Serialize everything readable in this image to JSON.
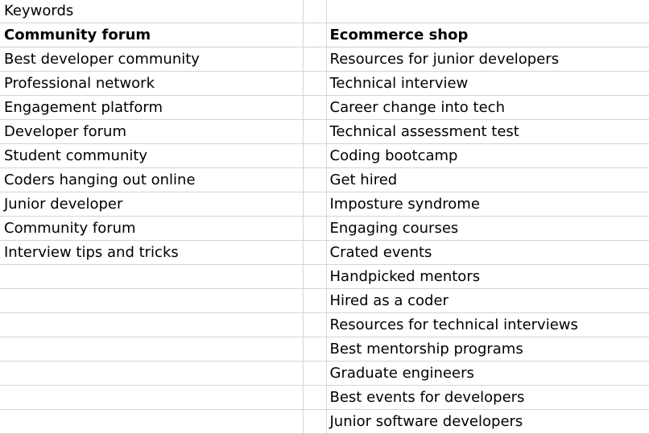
{
  "sheet": {
    "title_cell": "Keywords",
    "headers": {
      "community": "Community forum",
      "ecommerce": "Ecommerce shop"
    },
    "rows": [
      {
        "community": "Best developer community",
        "ecommerce": "Resources for junior developers"
      },
      {
        "community": "Professional network",
        "ecommerce": "Technical interview"
      },
      {
        "community": "Engagement platform",
        "ecommerce": "Career change into tech"
      },
      {
        "community": "Developer forum",
        "ecommerce": "Technical assessment test"
      },
      {
        "community": "Student community",
        "ecommerce": "Coding bootcamp"
      },
      {
        "community": "Coders hanging out online",
        "ecommerce": "Get hired"
      },
      {
        "community": "Junior developer",
        "ecommerce": "Imposture syndrome"
      },
      {
        "community": "Community forum",
        "ecommerce": "Engaging courses"
      },
      {
        "community": "Interview tips and tricks",
        "ecommerce": "Crated events"
      },
      {
        "community": "",
        "ecommerce": "Handpicked mentors"
      },
      {
        "community": "",
        "ecommerce": "Hired as a coder"
      },
      {
        "community": "",
        "ecommerce": "Resources for technical interviews"
      },
      {
        "community": "",
        "ecommerce": "Best mentorship programs"
      },
      {
        "community": "",
        "ecommerce": "Graduate engineers"
      },
      {
        "community": "",
        "ecommerce": "Best events for developers"
      },
      {
        "community": "",
        "ecommerce": "Junior software developers"
      }
    ]
  }
}
